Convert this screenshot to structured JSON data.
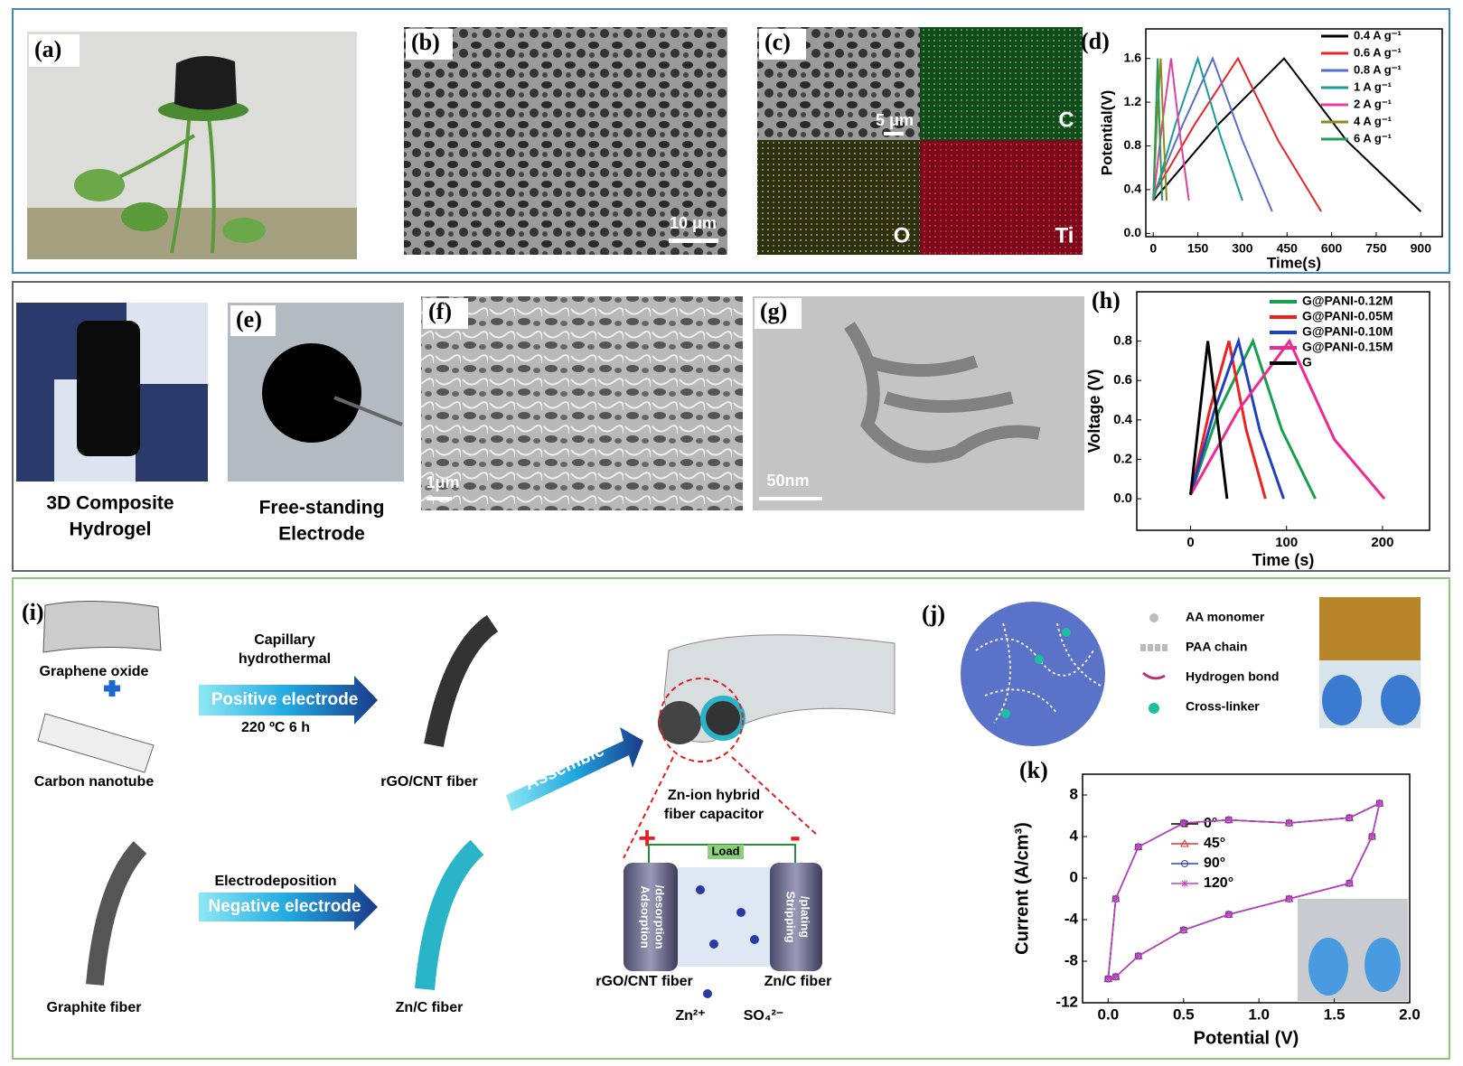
{
  "figure": {
    "a": {
      "label": "(a)"
    },
    "b": {
      "label": "(b)",
      "scale": "10 μm"
    },
    "c": {
      "label": "(c)",
      "scale": "5 μm",
      "maps": [
        "C",
        "O",
        "Ti"
      ]
    },
    "hydrogel": [
      "3D Composite",
      "Hydrogel"
    ],
    "e": {
      "label": "(e)",
      "caption": [
        "Free-standing",
        "Electrode"
      ]
    },
    "f": {
      "label": "(f)",
      "scale": "1μm"
    },
    "g": {
      "label": "(g)",
      "scale": "50nm"
    },
    "i": {
      "label": "(i)",
      "graphene_oxide": "Graphene oxide",
      "carbon_nanotube": "Carbon nanotube",
      "capillary": [
        "Capillary",
        "hydrothermal"
      ],
      "positive": "Positive electrode",
      "condition": "220 ºC 6 h",
      "rgo_fiber": "rGO/CNT fiber",
      "graphite_fiber": "Graphite fiber",
      "electrodeposition": "Electrodeposition",
      "negative": "Negative electrode",
      "zn_fiber": "Zn/C fiber",
      "assemble": "Assemble",
      "capacitor": [
        "Zn-ion hybrid",
        "fiber capacitor"
      ],
      "load": "Load",
      "plus": "+",
      "minus": "-",
      "adsorption": [
        "Adsorption",
        "/desorption"
      ],
      "stripping": [
        "Stripping",
        "/plating"
      ],
      "cell_left": "rGO/CNT fiber",
      "cell_right": "Zn/C fiber",
      "zn_ion": "Zn²⁺",
      "sulfate": "SO₄²⁻"
    },
    "j": {
      "label": "(j)",
      "legend": [
        "AA monomer",
        "PAA chain",
        "Hydrogen bond",
        "Cross-linker"
      ]
    }
  },
  "chart_data": [
    {
      "type": "line",
      "label": "(d)",
      "xlabel": "Time(s)",
      "ylabel": "Potential(V)",
      "xlim": [
        -25,
        972
      ],
      "ylim": [
        -0.03,
        1.87
      ],
      "xticks": [
        0,
        150,
        300,
        450,
        600,
        750,
        900
      ],
      "yticks": [
        {
          "value": 0,
          "label": "0.0"
        },
        0.4,
        0.8,
        1.2,
        1.6
      ],
      "series": [
        {
          "name": "0.4 A g⁻¹",
          "color": "#000000",
          "x": [
            0,
            220,
            440,
            650,
            900
          ],
          "values": [
            0.3,
            1.0,
            1.6,
            0.85,
            0.2
          ]
        },
        {
          "name": "0.6 A g⁻¹",
          "color": "#e8262a",
          "x": [
            0,
            140,
            285,
            420,
            565
          ],
          "values": [
            0.35,
            1.0,
            1.6,
            0.85,
            0.2
          ]
        },
        {
          "name": "0.8 A g⁻¹",
          "color": "#5a6ec8",
          "x": [
            0,
            100,
            200,
            300,
            400
          ],
          "values": [
            0.35,
            1.0,
            1.6,
            0.85,
            0.2
          ]
        },
        {
          "name": "1 A g⁻¹",
          "color": "#1a9a9a",
          "x": [
            0,
            75,
            150,
            225,
            300
          ],
          "values": [
            0.3,
            1.0,
            1.6,
            0.9,
            0.3
          ]
        },
        {
          "name": "2 A g⁻¹",
          "color": "#e040a0",
          "x": [
            0,
            30,
            60,
            90,
            120
          ],
          "values": [
            0.3,
            1.0,
            1.6,
            0.9,
            0.3
          ]
        },
        {
          "name": "4 A g⁻¹",
          "color": "#8a8a20",
          "x": [
            0,
            12,
            25,
            35,
            45
          ],
          "values": [
            0.3,
            1.0,
            1.6,
            0.9,
            0.3
          ]
        },
        {
          "name": "6 A g⁻¹",
          "color": "#2a9a5a",
          "x": [
            0,
            8,
            15,
            22,
            30
          ],
          "values": [
            0.3,
            1.0,
            1.6,
            0.9,
            0.3
          ]
        }
      ]
    },
    {
      "type": "line",
      "label": "(h)",
      "xlabel": "Time (s)",
      "ylabel": "Voltage (V)",
      "xlim": [
        -56,
        249
      ],
      "ylim": [
        -0.16,
        1.05
      ],
      "xticks": [
        0,
        100,
        200
      ],
      "yticks": [
        {
          "value": 0,
          "label": "0.0"
        },
        0.2,
        0.4,
        0.6,
        0.8
      ],
      "series": [
        {
          "name": "G@PANI-0.12M",
          "color": "#14a050",
          "x": [
            0,
            30,
            65,
            95,
            130
          ],
          "values": [
            0.02,
            0.45,
            0.8,
            0.35,
            0.0
          ]
        },
        {
          "name": "G@PANI-0.05M",
          "color": "#f02020",
          "x": [
            0,
            20,
            40,
            58,
            78
          ],
          "values": [
            0.02,
            0.45,
            0.8,
            0.35,
            0.0
          ]
        },
        {
          "name": "G@PANI-0.10M",
          "color": "#2040c0",
          "x": [
            0,
            25,
            50,
            72,
            97
          ],
          "values": [
            0.02,
            0.45,
            0.8,
            0.35,
            0.0
          ]
        },
        {
          "name": "G@PANI-0.15M",
          "color": "#f02890",
          "x": [
            0,
            50,
            103,
            150,
            202
          ],
          "values": [
            0.02,
            0.45,
            0.8,
            0.3,
            0.0
          ]
        },
        {
          "name": "G",
          "color": "#000000",
          "x": [
            0,
            18,
            38
          ],
          "values": [
            0.02,
            0.8,
            0.0
          ]
        }
      ]
    },
    {
      "type": "line",
      "label": "(k)",
      "xlabel": "Potential (V)",
      "ylabel": "Current (A/cm³)",
      "xlim": [
        -0.17,
        2.0
      ],
      "ylim": [
        -12,
        10
      ],
      "xticks": [
        {
          "value": 0,
          "label": "0.0"
        },
        0.5,
        {
          "value": 1,
          "label": "1.0"
        },
        1.5,
        {
          "value": 2,
          "label": "2.0"
        }
      ],
      "yticks": [
        -12,
        -8,
        -4,
        0,
        4,
        8
      ],
      "series": [
        {
          "name": "0°",
          "color": "#000000",
          "marker": "square",
          "x": [
            0,
            0.05,
            0.2,
            0.5,
            0.8,
            1.2,
            1.6,
            1.8,
            1.75,
            1.6,
            1.2,
            0.8,
            0.5,
            0.2,
            0.05,
            0
          ],
          "values": [
            -9.7,
            -2,
            3,
            5.3,
            5.6,
            5.3,
            5.8,
            7.2,
            4,
            -0.5,
            -2,
            -3.5,
            -5,
            -7.5,
            -9.5,
            -9.7
          ]
        },
        {
          "name": "45°",
          "color": "#e03030",
          "marker": "triangle",
          "x": [
            0,
            0.05,
            0.2,
            0.5,
            0.8,
            1.2,
            1.6,
            1.8,
            1.75,
            1.6,
            1.2,
            0.8,
            0.5,
            0.2,
            0.05,
            0
          ],
          "values": [
            -9.7,
            -2,
            3,
            5.3,
            5.6,
            5.3,
            5.8,
            7.2,
            4,
            -0.5,
            -2,
            -3.5,
            -5,
            -7.5,
            -9.5,
            -9.7
          ]
        },
        {
          "name": "90°",
          "color": "#3040c0",
          "marker": "circle",
          "x": [
            0,
            0.05,
            0.2,
            0.5,
            0.8,
            1.2,
            1.6,
            1.8,
            1.75,
            1.6,
            1.2,
            0.8,
            0.5,
            0.2,
            0.05,
            0
          ],
          "values": [
            -9.7,
            -2,
            3,
            5.3,
            5.6,
            5.3,
            5.8,
            7.2,
            4,
            -0.5,
            -2,
            -3.5,
            -5,
            -7.5,
            -9.5,
            -9.7
          ]
        },
        {
          "name": "120°",
          "color": "#c040c0",
          "marker": "star",
          "x": [
            0,
            0.05,
            0.2,
            0.5,
            0.8,
            1.2,
            1.6,
            1.8,
            1.75,
            1.6,
            1.2,
            0.8,
            0.5,
            0.2,
            0.05,
            0
          ],
          "values": [
            -9.7,
            -2,
            3,
            5.3,
            5.6,
            5.3,
            5.8,
            7.2,
            4,
            -0.5,
            -2,
            -3.5,
            -5,
            -7.5,
            -9.5,
            -9.7
          ]
        }
      ]
    }
  ]
}
